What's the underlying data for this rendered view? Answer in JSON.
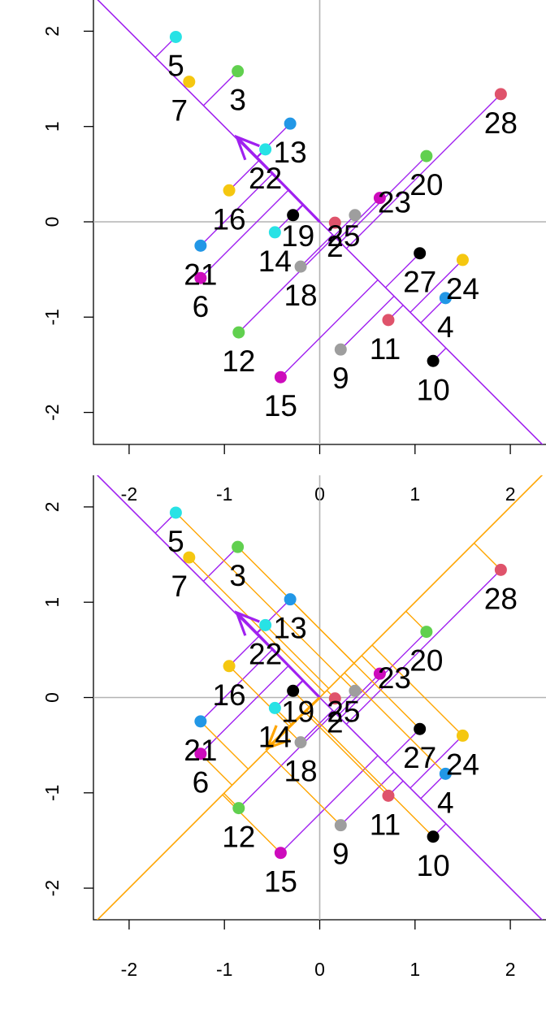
{
  "chart_data": [
    {
      "type": "scatter",
      "title": "",
      "xlabel": "",
      "ylabel": "",
      "xlim": [
        -2.37,
        2.37
      ],
      "ylim": [
        -2.37,
        2.37
      ],
      "x_ticks": [
        -2,
        -1,
        0,
        1,
        2
      ],
      "y_ticks": [
        -2,
        -1,
        0,
        1,
        2
      ],
      "x_tick_labels": [
        "-2",
        "-1",
        "0",
        "1",
        "2"
      ],
      "y_tick_labels": [
        "-2",
        "-1",
        "0",
        "1",
        "2"
      ],
      "reference_lines": [
        "x = 0",
        "y = 0"
      ],
      "projection_axes": [
        {
          "direction": [
            -0.7071,
            0.7071
          ],
          "color": "#a020f0",
          "arrow_tip": [
            -0.87,
            0.89
          ]
        }
      ],
      "points": [
        {
          "label": "2",
          "x": 0.16,
          "y": -0.01,
          "color": "#df536b"
        },
        {
          "label": "3",
          "x": -0.86,
          "y": 1.58,
          "color": "#61d04f"
        },
        {
          "label": "4",
          "x": 1.32,
          "y": -0.8,
          "color": "#2297e6"
        },
        {
          "label": "5",
          "x": -1.51,
          "y": 1.94,
          "color": "#28e2e5"
        },
        {
          "label": "6",
          "x": -1.25,
          "y": -0.59,
          "color": "#cd0bbc"
        },
        {
          "label": "7",
          "x": -1.37,
          "y": 1.47,
          "color": "#f5c710"
        },
        {
          "label": "9",
          "x": 0.22,
          "y": -1.34,
          "color": "#9e9e9e"
        },
        {
          "label": "10",
          "x": 1.19,
          "y": -1.46,
          "color": "#000000"
        },
        {
          "label": "11",
          "x": 0.72,
          "y": -1.03,
          "color": "#df536b"
        },
        {
          "label": "12",
          "x": -0.85,
          "y": -1.16,
          "color": "#61d04f"
        },
        {
          "label": "13",
          "x": -0.31,
          "y": 1.03,
          "color": "#2297e6"
        },
        {
          "label": "14",
          "x": -0.47,
          "y": -0.11,
          "color": "#28e2e5"
        },
        {
          "label": "15",
          "x": -0.41,
          "y": -1.63,
          "color": "#cd0bbc"
        },
        {
          "label": "16",
          "x": -0.95,
          "y": 0.33,
          "color": "#f5c710"
        },
        {
          "label": "18",
          "x": -0.2,
          "y": -0.47,
          "color": "#9e9e9e"
        },
        {
          "label": "19",
          "x": -0.28,
          "y": 0.07,
          "color": "#000000"
        },
        {
          "label": "20",
          "x": 1.12,
          "y": 0.69,
          "color": "#61d04f"
        },
        {
          "label": "21",
          "x": -1.25,
          "y": -0.25,
          "color": "#2297e6"
        },
        {
          "label": "22",
          "x": -0.57,
          "y": 0.76,
          "color": "#28e2e5"
        },
        {
          "label": "23",
          "x": 0.63,
          "y": 0.25,
          "color": "#cd0bbc"
        },
        {
          "label": "24",
          "x": 1.5,
          "y": -0.4,
          "color": "#f5c710"
        },
        {
          "label": "25",
          "x": 0.37,
          "y": 0.07,
          "color": "#9e9e9e"
        },
        {
          "label": "27",
          "x": 1.05,
          "y": -0.33,
          "color": "#000000"
        },
        {
          "label": "28",
          "x": 1.9,
          "y": 1.34,
          "color": "#df536b"
        }
      ]
    },
    {
      "type": "scatter",
      "title": "",
      "xlabel": "",
      "ylabel": "",
      "xlim": [
        -2.37,
        2.37
      ],
      "ylim": [
        -2.37,
        2.37
      ],
      "x_ticks": [
        -2,
        -1,
        0,
        1,
        2
      ],
      "y_ticks": [
        -2,
        -1,
        0,
        1,
        2
      ],
      "x_tick_labels": [
        "-2",
        "-1",
        "0",
        "1",
        "2"
      ],
      "y_tick_labels": [
        "-2",
        "-1",
        "0",
        "1",
        "2"
      ],
      "reference_lines": [
        "x = 0",
        "y = 0"
      ],
      "projection_axes": [
        {
          "direction": [
            -0.7071,
            0.7071
          ],
          "color": "#a020f0",
          "arrow_tip": [
            -0.87,
            0.89
          ]
        },
        {
          "direction": [
            0.7071,
            0.7071
          ],
          "color": "#ffa500",
          "arrow_tip": [
            -0.55,
            -0.53
          ]
        }
      ],
      "points_same_as_panel": 1
    }
  ]
}
